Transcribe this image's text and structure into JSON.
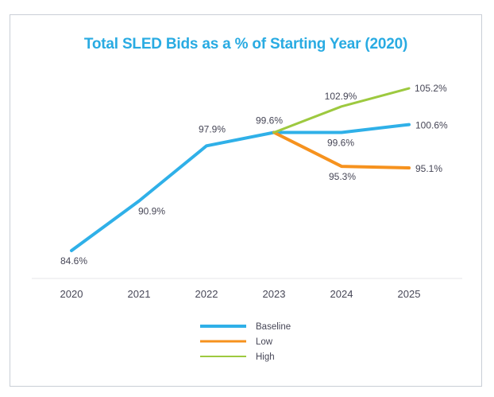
{
  "card": {
    "border_color": "#c9ced6",
    "background": "#ffffff"
  },
  "chart_data": {
    "type": "line",
    "title": "Total SLED Bids as a % of Starting Year (2020)",
    "title_color": "#29abe2",
    "xlabel": "",
    "ylabel": "",
    "x_ticks": [
      "2020",
      "2021",
      "2022",
      "2023",
      "2024",
      "2025"
    ],
    "ylim": [
      81,
      107
    ],
    "grid": false,
    "legend_position": "bottom",
    "axis_line_color": "#e5e5e8",
    "label_text_color": "#474757",
    "series": [
      {
        "name": "Baseline",
        "color": "#2fb0e8",
        "x": [
          2020,
          2021,
          2022,
          2023,
          2024,
          2025
        ],
        "values": [
          84.6,
          90.9,
          97.9,
          99.6,
          99.6,
          100.6
        ],
        "point_labels": [
          "84.6%",
          "90.9%",
          "97.9%",
          "99.6%",
          "99.6%",
          "100.6%"
        ]
      },
      {
        "name": "Low",
        "color": "#f6921e",
        "x": [
          2023,
          2024,
          2025
        ],
        "values": [
          99.6,
          95.3,
          95.1
        ],
        "point_labels": [
          null,
          "95.3%",
          "95.1%"
        ]
      },
      {
        "name": "High",
        "color": "#9dc93f",
        "x": [
          2023,
          2024,
          2025
        ],
        "values": [
          99.6,
          102.9,
          105.2
        ],
        "point_labels": [
          null,
          "102.9%",
          "105.2%"
        ]
      }
    ]
  }
}
